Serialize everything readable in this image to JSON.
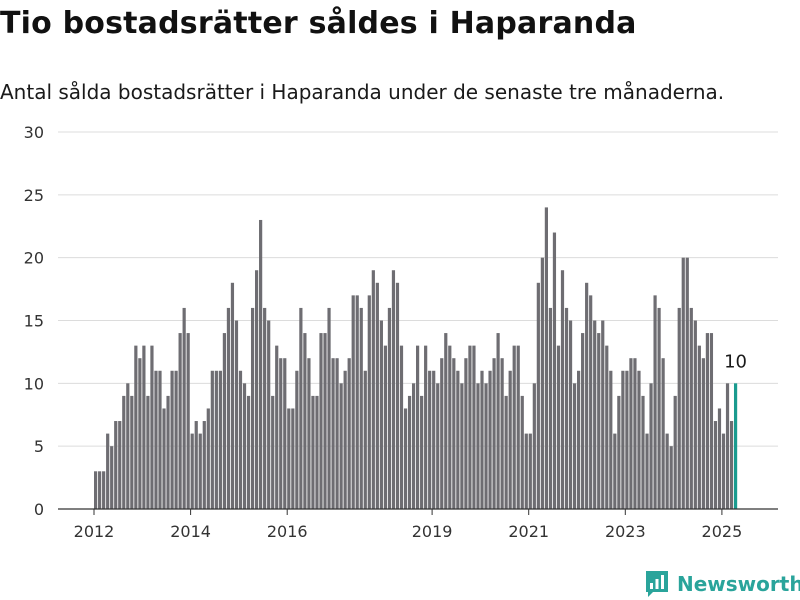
{
  "header": {
    "title": "Tio bostadsrätter såldes i Haparanda",
    "subtitle": "Antal sålda bostadsrätter i Haparanda under de senaste tre månaderna."
  },
  "brand": {
    "name": "Newsworthy",
    "icon": "newsworthy-chart-logo-icon"
  },
  "colors": {
    "bar": "#6e6d72",
    "highlight": "#1a9b8f",
    "grid": "#dcdcdc",
    "axis": "#333333",
    "brand": "#2aa49b"
  },
  "chart_data": {
    "type": "bar",
    "title": "",
    "xlabel": "",
    "ylabel": "",
    "ylim": [
      0,
      30
    ],
    "yticks": [
      0,
      5,
      10,
      15,
      20,
      25,
      30
    ],
    "grid": true,
    "legend": "none",
    "x_start": {
      "year": 2012,
      "month": 1
    },
    "xticks": [
      "2012",
      "2014",
      "2016",
      "2019",
      "2021",
      "2023",
      "2025"
    ],
    "values": [
      3,
      3,
      3,
      6,
      5,
      7,
      7,
      9,
      10,
      9,
      13,
      12,
      13,
      9,
      13,
      11,
      11,
      8,
      9,
      11,
      11,
      14,
      16,
      14,
      6,
      7,
      6,
      7,
      8,
      11,
      11,
      11,
      14,
      16,
      18,
      15,
      11,
      10,
      9,
      16,
      19,
      23,
      16,
      15,
      9,
      13,
      12,
      12,
      8,
      8,
      11,
      16,
      14,
      12,
      9,
      9,
      14,
      14,
      16,
      12,
      12,
      10,
      11,
      12,
      17,
      17,
      16,
      11,
      17,
      19,
      18,
      15,
      13,
      16,
      19,
      18,
      13,
      8,
      9,
      10,
      13,
      9,
      13,
      11,
      11,
      10,
      12,
      14,
      13,
      12,
      11,
      10,
      12,
      13,
      13,
      10,
      11,
      10,
      11,
      12,
      14,
      12,
      9,
      11,
      13,
      13,
      9,
      6,
      6,
      10,
      18,
      20,
      24,
      16,
      22,
      13,
      19,
      16,
      15,
      10,
      11,
      14,
      18,
      17,
      15,
      14,
      15,
      13,
      11,
      6,
      9,
      11,
      11,
      12,
      12,
      11,
      9,
      6,
      10,
      17,
      16,
      12,
      6,
      5,
      9,
      16,
      20,
      20,
      16,
      15,
      13,
      12,
      14,
      14,
      7,
      8,
      6,
      10,
      7,
      10
    ],
    "highlight_last": true,
    "data_labels": [
      {
        "index": -1,
        "text": "10"
      }
    ]
  }
}
